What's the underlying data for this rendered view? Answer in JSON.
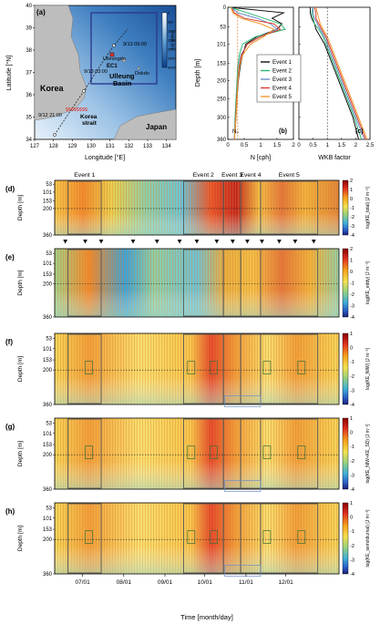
{
  "figure": {
    "panel_labels": [
      "(a)",
      "(b)",
      "(c)",
      "(d)",
      "(e)",
      "(f)",
      "(g)",
      "(h)"
    ]
  },
  "map": {
    "xlabel": "Longitude [°E]",
    "ylabel": "Latitude [°N]",
    "x_ticks": [
      127,
      128,
      129,
      130,
      131,
      132,
      133,
      134
    ],
    "y_ticks": [
      34,
      35,
      36,
      37,
      38,
      39,
      40
    ],
    "x_range": [
      127,
      134.5
    ],
    "y_range": [
      34,
      40
    ],
    "depth_bar": {
      "label": "Depth [m]",
      "ticks": [
        "0",
        "500",
        "1000",
        "1500",
        "2000",
        "2500",
        "3000"
      ]
    },
    "labels": {
      "korea": "Korea",
      "japan": "Japan",
      "korea_strait": "Korea\nstrait",
      "ulleung_basin": "Ulleung\nBasin",
      "ulleungdo": "Ulleungdo",
      "dokdo": "Dokdo",
      "ec1": "EC1",
      "t1": "9/13 09:00",
      "t2": "9/13 03:00",
      "t3": "9/12 21:00"
    },
    "colors": {
      "sea_deep": "#1f5ea8",
      "sea_shallow": "#cfe1f2",
      "land": "#bdbdbd",
      "box": "#2b3a8f",
      "track": "#222222",
      "hatch": "#e0352b"
    }
  },
  "profiles": {
    "b": {
      "xlabel": "N [cph]",
      "x_ticks": [
        "0",
        "0.5",
        "1",
        "1.5",
        "2"
      ],
      "x_range": [
        0,
        2
      ],
      "n0_label": "N₀",
      "n0_value": 0.3
    },
    "c": {
      "xlabel": "WKB factor",
      "x_ticks": [
        "0",
        "0.5",
        "1",
        "1.5",
        "2",
        "2.5"
      ],
      "x_range": [
        0,
        2.5
      ],
      "ref_value": 1
    },
    "depth_label": "Depth [m]",
    "depth_ticks": [
      0,
      53,
      101,
      153,
      200,
      250,
      300,
      360
    ],
    "legend": [
      "Event 1",
      "Event 2",
      "Event 3",
      "Event 4",
      "Event 5"
    ],
    "colors": [
      "#111111",
      "#2bb673",
      "#6a8fc7",
      "#d93a2b",
      "#f29a2e"
    ]
  },
  "sections": {
    "x_axis_label": "Time [month/day]",
    "x_ticks": [
      "07/01",
      "08/01",
      "09/01",
      "10/01",
      "11/01",
      "12/01"
    ],
    "depth_ticks": [
      53,
      101,
      153,
      200,
      360
    ],
    "events": [
      "Event 1",
      "Event 2",
      "Event 3",
      "Event 4",
      "Event 5"
    ],
    "colorbars": [
      {
        "panel": "d",
        "label": "log(KE_total) [J m⁻³]",
        "ticks": [
          "2",
          "1",
          "0",
          "-1",
          "-2",
          "-3",
          "-4"
        ]
      },
      {
        "panel": "e",
        "label": "log(KE_eddy) [J m⁻³]",
        "ticks": [
          "2",
          "1",
          "0",
          "-1",
          "-2",
          "-3",
          "-4"
        ]
      },
      {
        "panel": "f",
        "label": "log(KE_NIW) [J m⁻³]",
        "ticks": [
          "1",
          "0",
          "-1",
          "-2",
          "-3",
          "-4"
        ]
      },
      {
        "panel": "g",
        "label": "log(KE_NIW+KE_SD) [J m⁻³]",
        "ticks": [
          "1",
          "0",
          "-1",
          "-2",
          "-3",
          "-4"
        ]
      },
      {
        "panel": "h",
        "label": "log(KE_semi/diurnal) [J m⁻³]",
        "ticks": [
          "1",
          "0",
          "-1",
          "-2",
          "-3",
          "-4"
        ]
      }
    ]
  },
  "chart_data": [
    {
      "type": "line",
      "panel": "b",
      "xlabel": "N [cph]",
      "ylabel": "Depth [m]",
      "xlim": [
        0,
        2
      ],
      "ylim": [
        360,
        0
      ],
      "y": [
        0,
        15,
        30,
        45,
        60,
        80,
        100,
        130,
        160,
        200,
        250,
        300,
        360
      ],
      "series": [
        {
          "name": "Event 1",
          "values": [
            0.05,
            1.7,
            1.35,
            1.65,
            1.5,
            0.9,
            0.55,
            0.45,
            0.38,
            0.32,
            0.28,
            0.25,
            0.2
          ]
        },
        {
          "name": "Event 2",
          "values": [
            0.05,
            0.6,
            1.1,
            1.6,
            1.75,
            0.85,
            0.45,
            0.35,
            0.3,
            0.28,
            0.25,
            0.22,
            0.2
          ]
        },
        {
          "name": "Event 3",
          "values": [
            0.1,
            0.3,
            0.9,
            1.3,
            1.5,
            1.0,
            0.6,
            0.4,
            0.33,
            0.3,
            0.27,
            0.24,
            0.2
          ]
        },
        {
          "name": "Event 4",
          "values": [
            0.1,
            0.2,
            0.5,
            1.4,
            1.6,
            1.0,
            0.6,
            0.42,
            0.35,
            0.31,
            0.27,
            0.24,
            0.2
          ]
        },
        {
          "name": "Event 5",
          "values": [
            0.1,
            0.15,
            0.4,
            1.0,
            1.4,
            1.1,
            0.7,
            0.45,
            0.36,
            0.31,
            0.28,
            0.25,
            0.2
          ]
        }
      ]
    },
    {
      "type": "line",
      "panel": "c",
      "xlabel": "WKB factor",
      "ylabel": "Depth [m]",
      "xlim": [
        0,
        2.5
      ],
      "ylim": [
        360,
        0
      ],
      "y": [
        0,
        15,
        30,
        45,
        60,
        80,
        100,
        130,
        160,
        200,
        250,
        300,
        360
      ],
      "series": [
        {
          "name": "Event 1",
          "values": [
            0.4,
            0.4,
            0.45,
            0.55,
            0.6,
            0.75,
            0.9,
            1.05,
            1.2,
            1.4,
            1.65,
            1.9,
            2.1
          ]
        },
        {
          "name": "Event 2",
          "values": [
            0.5,
            0.45,
            0.5,
            0.55,
            0.7,
            0.85,
            0.95,
            1.1,
            1.25,
            1.45,
            1.7,
            1.95,
            2.2
          ]
        },
        {
          "name": "Event 3",
          "values": [
            0.5,
            0.5,
            0.55,
            0.65,
            0.75,
            0.9,
            1.0,
            1.15,
            1.3,
            1.5,
            1.75,
            2.0,
            2.3
          ]
        },
        {
          "name": "Event 4",
          "values": [
            0.55,
            0.6,
            0.6,
            0.7,
            0.8,
            0.95,
            1.05,
            1.2,
            1.35,
            1.55,
            1.8,
            2.05,
            2.35
          ]
        },
        {
          "name": "Event 5",
          "values": [
            0.6,
            0.65,
            0.7,
            0.75,
            0.85,
            1.0,
            1.1,
            1.25,
            1.4,
            1.6,
            1.85,
            2.1,
            2.4
          ]
        }
      ]
    },
    {
      "type": "heatmap",
      "panels": [
        "d",
        "e",
        "f",
        "g",
        "h"
      ],
      "xlabel": "Time [month/day]",
      "ylabel": "Depth [m]",
      "x_ticks": [
        "07/01",
        "08/01",
        "09/01",
        "10/01",
        "11/01",
        "12/01"
      ],
      "y_ticks": [
        53,
        101,
        153,
        200,
        360
      ],
      "event_windows": [
        {
          "name": "Event 1",
          "start": "06/20",
          "end": "07/15"
        },
        {
          "name": "Event 2",
          "start": "09/15",
          "end": "10/15"
        },
        {
          "name": "Event 3",
          "start": "10/15",
          "end": "10/28"
        },
        {
          "name": "Event 4",
          "start": "10/28",
          "end": "11/12"
        },
        {
          "name": "Event 5",
          "start": "11/12",
          "end": "12/25"
        }
      ]
    }
  ]
}
